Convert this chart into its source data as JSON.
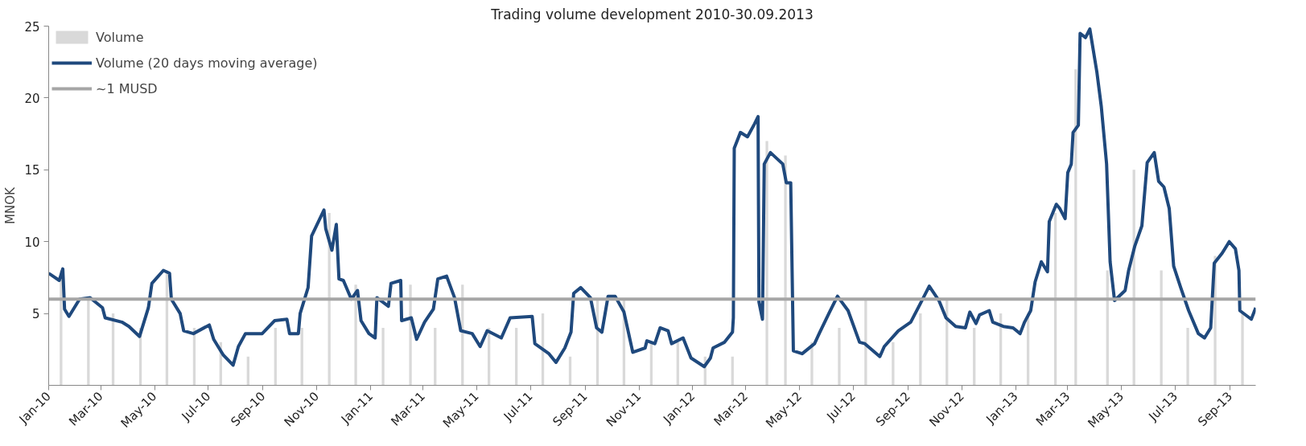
{
  "chart_data": {
    "type": "line",
    "title": "Trading volume development 2010-30.09.2013",
    "ylabel": "MNOK",
    "xlim": [
      "2010-01-01",
      "2013-09-30"
    ],
    "ylim": [
      0,
      25
    ],
    "yticks": [
      5,
      10,
      15,
      20,
      25
    ],
    "xticks": [
      {
        "value": "2010-01-01",
        "label": "Jan-10"
      },
      {
        "value": "2010-03-01",
        "label": "Mar-10"
      },
      {
        "value": "2010-05-01",
        "label": "May-10"
      },
      {
        "value": "2010-07-01",
        "label": "Jul-10"
      },
      {
        "value": "2010-09-01",
        "label": "Sep-10"
      },
      {
        "value": "2010-11-01",
        "label": "Nov-10"
      },
      {
        "value": "2011-01-01",
        "label": "Jan-11"
      },
      {
        "value": "2011-03-01",
        "label": "Mar-11"
      },
      {
        "value": "2011-05-01",
        "label": "May-11"
      },
      {
        "value": "2011-07-01",
        "label": "Jul-11"
      },
      {
        "value": "2011-09-01",
        "label": "Sep-11"
      },
      {
        "value": "2011-11-01",
        "label": "Nov-11"
      },
      {
        "value": "2012-01-01",
        "label": "Jan-12"
      },
      {
        "value": "2012-03-01",
        "label": "Mar-12"
      },
      {
        "value": "2012-05-01",
        "label": "May-12"
      },
      {
        "value": "2012-07-01",
        "label": "Jul-12"
      },
      {
        "value": "2012-09-01",
        "label": "Sep-12"
      },
      {
        "value": "2012-11-01",
        "label": "Nov-12"
      },
      {
        "value": "2013-01-01",
        "label": "Jan-13"
      },
      {
        "value": "2013-03-01",
        "label": "Mar-13"
      },
      {
        "value": "2013-05-01",
        "label": "May-13"
      },
      {
        "value": "2013-07-01",
        "label": "Jul-13"
      },
      {
        "value": "2013-09-01",
        "label": "Sep-13"
      }
    ],
    "grid": false,
    "legend": "top left",
    "marker": "none",
    "line_style": "solid",
    "ref_lines": [
      {
        "axis": "y",
        "value": 6,
        "label": "~1 MUSD",
        "color": "#a6a6a6"
      }
    ],
    "series": [
      {
        "name": "Volume",
        "type": "bar",
        "color": "#d9d9d9",
        "x": [
          "2010-01-15",
          "2010-02-15",
          "2010-03-15",
          "2010-04-15",
          "2010-05-15",
          "2010-06-15",
          "2010-07-15",
          "2010-08-15",
          "2010-09-15",
          "2010-10-15",
          "2010-11-15",
          "2010-12-15",
          "2011-01-15",
          "2011-02-15",
          "2011-03-15",
          "2011-04-15",
          "2011-05-15",
          "2011-06-15",
          "2011-07-15",
          "2011-08-15",
          "2011-09-15",
          "2011-10-15",
          "2011-11-15",
          "2011-12-15",
          "2012-01-15",
          "2012-02-15",
          "2012-03-25",
          "2012-04-15",
          "2012-05-15",
          "2012-06-15",
          "2012-07-15",
          "2012-08-15",
          "2012-09-15",
          "2012-10-15",
          "2012-11-15",
          "2012-12-15",
          "2013-01-15",
          "2013-02-15",
          "2013-03-10",
          "2013-04-15",
          "2013-05-15",
          "2013-06-15",
          "2013-07-15",
          "2013-08-15",
          "2013-09-15"
        ],
        "values": [
          8,
          6,
          5,
          4,
          8,
          4,
          3,
          2,
          4,
          4,
          12,
          7,
          4,
          7,
          4,
          7,
          4,
          4,
          5,
          2,
          6,
          6,
          3,
          3,
          2,
          2,
          17,
          16,
          3,
          4,
          6,
          3,
          5,
          6,
          4,
          5,
          5,
          12,
          22,
          8,
          15,
          8,
          4,
          9,
          5
        ]
      },
      {
        "name": "Volume (20 days moving average)",
        "color": "#1f497d",
        "x": [
          "2010-01-01",
          "2010-01-13",
          "2010-01-17",
          "2010-01-19",
          "2010-01-24",
          "2010-02-05",
          "2010-02-17",
          "2010-03-03",
          "2010-03-06",
          "2010-03-25",
          "2010-04-02",
          "2010-04-14",
          "2010-04-24",
          "2010-04-28",
          "2010-05-11",
          "2010-05-18",
          "2010-05-20",
          "2010-05-30",
          "2010-06-03",
          "2010-06-14",
          "2010-07-02",
          "2010-07-07",
          "2010-07-18",
          "2010-07-29",
          "2010-08-04",
          "2010-08-12",
          "2010-08-31",
          "2010-09-14",
          "2010-09-28",
          "2010-10-01",
          "2010-10-11",
          "2010-10-13",
          "2010-10-22",
          "2010-10-26",
          "2010-11-09",
          "2010-11-11",
          "2010-11-18",
          "2010-11-23",
          "2010-11-26",
          "2010-12-01",
          "2010-12-10",
          "2010-12-17",
          "2010-12-21",
          "2010-12-30",
          "2011-01-06",
          "2011-01-08",
          "2011-01-21",
          "2011-01-24",
          "2011-02-04",
          "2011-02-05",
          "2011-02-16",
          "2011-02-22",
          "2011-03-03",
          "2011-03-13",
          "2011-03-18",
          "2011-03-28",
          "2011-04-06",
          "2011-04-13",
          "2011-04-26",
          "2011-05-05",
          "2011-05-13",
          "2011-05-29",
          "2011-06-08",
          "2011-07-03",
          "2011-07-06",
          "2011-07-22",
          "2011-07-30",
          "2011-08-09",
          "2011-08-16",
          "2011-08-19",
          "2011-08-27",
          "2011-09-07",
          "2011-09-14",
          "2011-09-20",
          "2011-09-27",
          "2011-10-05",
          "2011-10-15",
          "2011-10-25",
          "2011-11-08",
          "2011-11-10",
          "2011-11-19",
          "2011-11-25",
          "2011-12-04",
          "2011-12-08",
          "2011-12-21",
          "2011-12-30",
          "2012-01-14",
          "2012-01-21",
          "2012-01-24",
          "2012-02-06",
          "2012-02-15",
          "2012-02-16",
          "2012-02-17",
          "2012-02-24",
          "2012-03-03",
          "2012-03-11",
          "2012-03-15",
          "2012-03-16",
          "2012-03-20",
          "2012-03-22",
          "2012-03-29",
          "2012-04-12",
          "2012-04-16",
          "2012-04-21",
          "2012-04-24",
          "2012-05-04",
          "2012-05-18",
          "2012-05-24",
          "2012-06-04",
          "2012-06-13",
          "2012-06-25",
          "2012-07-08",
          "2012-07-14",
          "2012-07-31",
          "2012-08-05",
          "2012-08-21",
          "2012-09-04",
          "2012-09-15",
          "2012-09-25",
          "2012-10-06",
          "2012-10-14",
          "2012-10-25",
          "2012-11-05",
          "2012-11-10",
          "2012-11-17",
          "2012-11-21",
          "2012-12-02",
          "2012-12-06",
          "2012-12-18",
          "2012-12-29",
          "2013-01-06",
          "2013-01-11",
          "2013-01-18",
          "2013-01-23",
          "2013-01-30",
          "2013-02-06",
          "2013-02-08",
          "2013-02-16",
          "2013-02-20",
          "2013-02-26",
          "2013-03-01",
          "2013-03-05",
          "2013-03-07",
          "2013-03-13",
          "2013-03-15",
          "2013-03-21",
          "2013-03-26",
          "2013-04-03",
          "2013-04-08",
          "2013-04-14",
          "2013-04-18",
          "2013-04-23",
          "2013-05-05",
          "2013-05-09",
          "2013-05-16",
          "2013-05-24",
          "2013-05-30",
          "2013-06-07",
          "2013-06-12",
          "2013-06-18",
          "2013-06-24",
          "2013-06-29",
          "2013-07-07",
          "2013-07-16",
          "2013-07-27",
          "2013-08-03",
          "2013-08-10",
          "2013-08-14",
          "2013-08-23",
          "2013-08-31",
          "2013-09-07",
          "2013-09-11",
          "2013-09-12",
          "2013-09-25",
          "2013-09-30"
        ],
        "values": [
          7.8,
          7.3,
          8.1,
          5.3,
          4.8,
          6.0,
          6.1,
          5.4,
          4.7,
          4.4,
          4.1,
          3.4,
          5.4,
          7.1,
          8.0,
          7.8,
          6.0,
          5.0,
          3.8,
          3.6,
          4.2,
          3.2,
          2.1,
          1.4,
          2.7,
          3.6,
          3.6,
          4.5,
          4.6,
          3.6,
          3.6,
          5.0,
          6.8,
          10.4,
          12.2,
          10.9,
          9.4,
          11.2,
          7.4,
          7.3,
          6.0,
          6.6,
          4.5,
          3.6,
          3.3,
          6.1,
          5.5,
          7.1,
          7.3,
          4.5,
          4.7,
          3.2,
          4.4,
          5.3,
          7.4,
          7.6,
          6.1,
          3.8,
          3.6,
          2.7,
          3.8,
          3.3,
          4.7,
          4.8,
          2.9,
          2.2,
          1.6,
          2.6,
          3.7,
          6.4,
          6.8,
          6.1,
          4.0,
          3.7,
          6.2,
          6.2,
          5.1,
          2.3,
          2.6,
          3.1,
          2.9,
          4.0,
          3.8,
          2.9,
          3.3,
          1.9,
          1.3,
          1.9,
          2.6,
          3.0,
          3.7,
          4.7,
          16.5,
          17.6,
          17.3,
          18.2,
          18.7,
          5.8,
          4.6,
          15.4,
          16.2,
          15.4,
          14.1,
          14.1,
          2.4,
          2.2,
          2.9,
          3.7,
          5.1,
          6.2,
          5.2,
          3.0,
          2.9,
          2.0,
          2.7,
          3.8,
          4.4,
          5.7,
          6.9,
          5.9,
          4.7,
          4.1,
          4.0,
          5.1,
          4.3,
          4.9,
          5.2,
          4.4,
          4.1,
          4.0,
          3.6,
          4.4,
          5.2,
          7.2,
          8.6,
          7.9,
          11.4,
          12.6,
          12.3,
          11.6,
          14.8,
          15.4,
          17.6,
          18.1,
          24.5,
          24.2,
          24.8,
          21.8,
          19.4,
          15.4,
          8.6,
          5.9,
          6.6,
          8.0,
          9.7,
          11.1,
          15.5,
          16.2,
          14.2,
          13.8,
          12.3,
          8.3,
          6.8,
          5.2,
          3.6,
          3.3,
          4.0,
          8.5,
          9.2,
          10.0,
          9.5,
          8.0,
          5.2,
          4.6,
          5.4
        ]
      }
    ]
  }
}
